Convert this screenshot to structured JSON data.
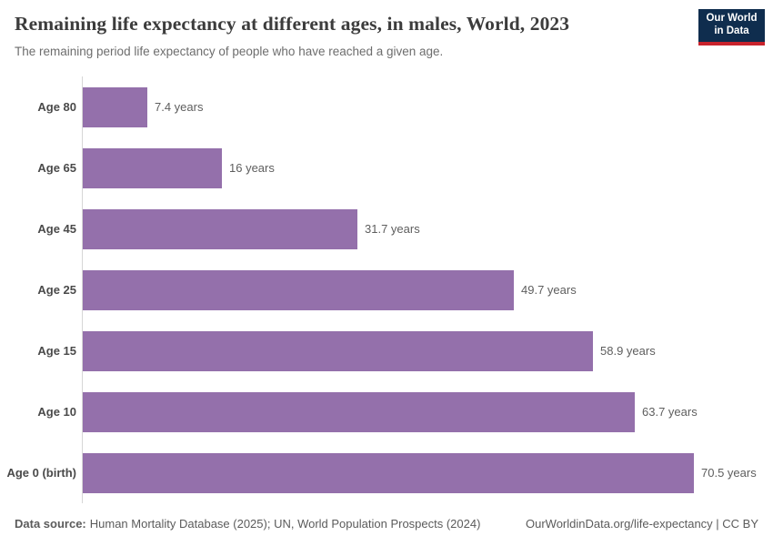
{
  "header": {
    "title": "Remaining life expectancy at different ages, in males, World, 2023",
    "subtitle": "The remaining period life expectancy of people who have reached a given age.",
    "logo": {
      "line1": "Our World",
      "line2": "in Data"
    }
  },
  "chart_data": {
    "type": "bar",
    "orientation": "horizontal",
    "title": "Remaining life expectancy at different ages, in males, World, 2023",
    "categories": [
      "Age 80",
      "Age 65",
      "Age 45",
      "Age 25",
      "Age 15",
      "Age 10",
      "Age 0 (birth)"
    ],
    "values": [
      7.4,
      16,
      31.7,
      49.7,
      58.9,
      63.7,
      70.5
    ],
    "value_labels": [
      "7.4 years",
      "16 years",
      "31.7 years",
      "49.7 years",
      "58.9 years",
      "63.7 years",
      "70.5 years"
    ],
    "unit": "years",
    "xlim": [
      0,
      70.5
    ],
    "bar_color": "#9470ab",
    "axis_line_color": "#d6d6d6",
    "grid": false,
    "legend": "none"
  },
  "footer": {
    "datasource_label": "Data source:",
    "datasource_text": "Human Mortality Database (2025); UN, World Population Prospects (2024)",
    "attribution": "OurWorldinData.org/life-expectancy | CC BY"
  }
}
